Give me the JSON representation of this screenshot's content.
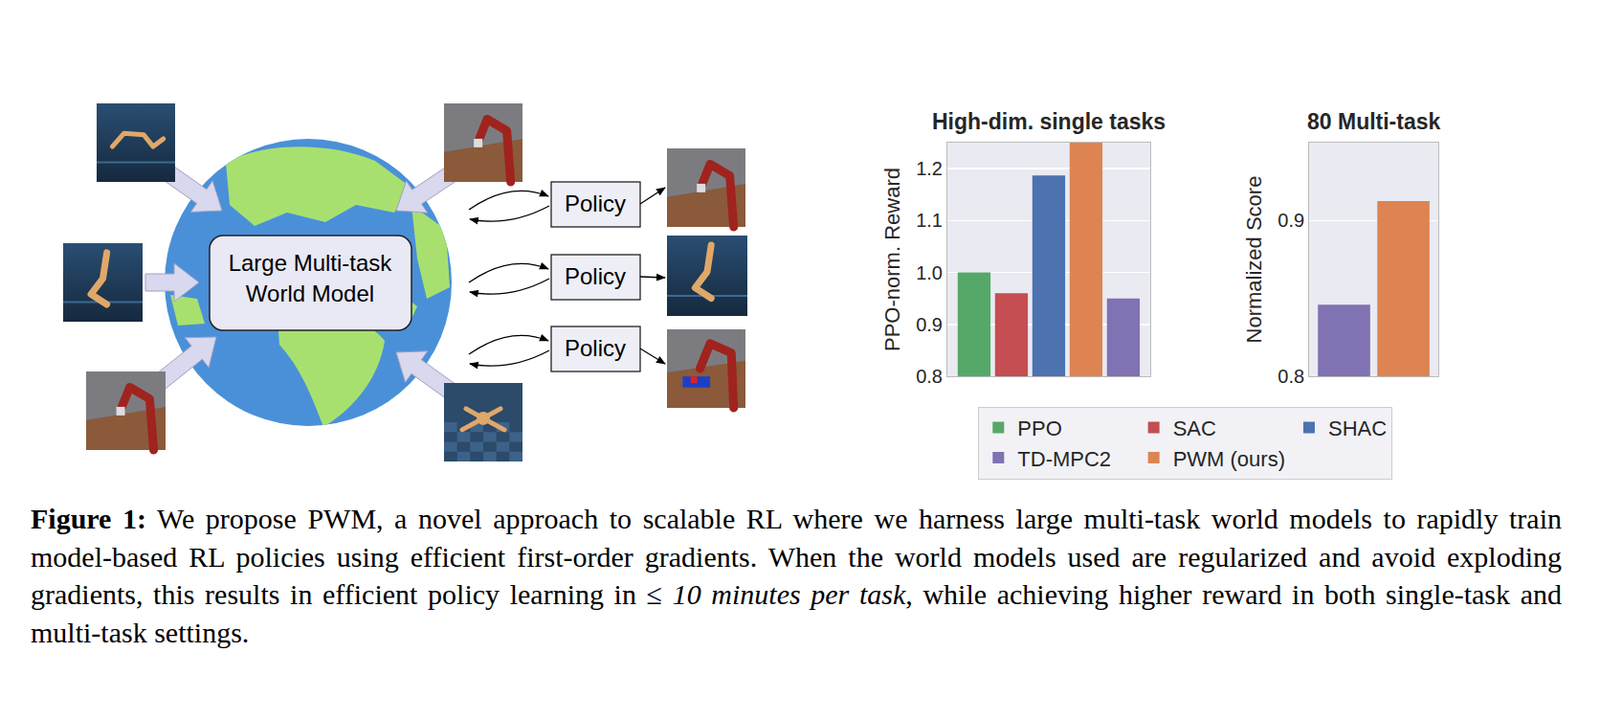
{
  "diagram": {
    "center_label": [
      "Large Multi-task",
      "World Model"
    ],
    "policies": [
      "Policy",
      "Policy",
      "Policy"
    ]
  },
  "chart_data": [
    {
      "type": "bar",
      "title": "High-dim. single tasks",
      "y_label": "PPO-norm. Reward",
      "categories": [
        null
      ],
      "series": [
        {
          "name": "PPO",
          "color": "#55a868",
          "values": [
            1.0
          ]
        },
        {
          "name": "SAC",
          "color": "#c44e52",
          "values": [
            0.96
          ]
        },
        {
          "name": "SHAC",
          "color": "#4c72b0",
          "values": [
            1.187
          ]
        },
        {
          "name": "PWM (ours)",
          "color": "#dd8452",
          "values": [
            1.25
          ]
        },
        {
          "name": "TD-MPC2",
          "color": "#8172b3",
          "values": [
            0.95
          ]
        }
      ],
      "ylim": [
        0.8,
        1.25
      ],
      "yticks": [
        0.8,
        0.9,
        {
          "value": 1,
          "label": "1.0"
        },
        1.1,
        1.2
      ],
      "grid": true,
      "tick_labels": "y",
      "legend": "bottom"
    },
    {
      "type": "bar",
      "title": "80 Multi-task",
      "y_label": "Normalized Score",
      "categories": [
        null
      ],
      "series": [
        {
          "name": "TD-MPC2",
          "color": "#8172b3",
          "values": [
            0.846
          ]
        },
        {
          "name": "PWM (ours)",
          "color": "#dd8452",
          "values": [
            0.9125
          ]
        }
      ],
      "ylim": [
        0.8,
        0.95
      ],
      "yticks": [
        0.8,
        0.9
      ],
      "grid": true,
      "tick_labels": "y",
      "legend": "bottom"
    }
  ],
  "caption": {
    "segments": [
      {
        "text": "Figure 1:",
        "style": "bold"
      },
      {
        "text": " We propose PWM, a novel approach to scalable RL where we harness large multi-task world models to rapidly train model-based RL policies using efficient first-order gradients. When the world models used are regularized and avoid exploding gradients, this results in efficient policy learning in ≤ ",
        "style": "normal"
      },
      {
        "text": "10 minutes per task",
        "style": "italic"
      },
      {
        "text": ", while achieving higher reward in both single-task and multi-task settings.",
        "style": "normal"
      }
    ]
  }
}
